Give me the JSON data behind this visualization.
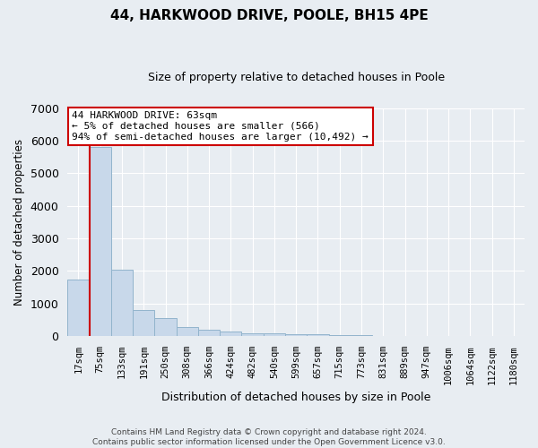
{
  "title": "44, HARKWOOD DRIVE, POOLE, BH15 4PE",
  "subtitle": "Size of property relative to detached houses in Poole",
  "xlabel": "Distribution of detached houses by size in Poole",
  "ylabel": "Number of detached properties",
  "bar_color": "#c8d8ea",
  "bar_edge_color": "#92b4cc",
  "categories": [
    "17sqm",
    "75sqm",
    "133sqm",
    "191sqm",
    "250sqm",
    "308sqm",
    "366sqm",
    "424sqm",
    "482sqm",
    "540sqm",
    "599sqm",
    "657sqm",
    "715sqm",
    "773sqm",
    "831sqm",
    "889sqm",
    "947sqm",
    "1006sqm",
    "1064sqm",
    "1122sqm",
    "1180sqm"
  ],
  "values": [
    1750,
    5800,
    2050,
    800,
    550,
    280,
    200,
    150,
    100,
    80,
    60,
    50,
    35,
    20,
    15,
    10,
    8,
    5,
    4,
    3,
    2
  ],
  "ylim": [
    0,
    7000
  ],
  "yticks": [
    0,
    1000,
    2000,
    3000,
    4000,
    5000,
    6000,
    7000
  ],
  "annotation_text": "44 HARKWOOD DRIVE: 63sqm\n← 5% of detached houses are smaller (566)\n94% of semi-detached houses are larger (10,492) →",
  "annotation_box_color": "#ffffff",
  "annotation_box_edge_color": "#cc0000",
  "vline_color": "#cc0000",
  "footer_line1": "Contains HM Land Registry data © Crown copyright and database right 2024.",
  "footer_line2": "Contains public sector information licensed under the Open Government Licence v3.0.",
  "background_color": "#e8edf2",
  "plot_background": "#e8edf2",
  "grid_color": "#ffffff",
  "title_fontsize": 11,
  "subtitle_fontsize": 9,
  "ylabel_fontsize": 8.5,
  "xlabel_fontsize": 9,
  "tick_fontsize": 7.5,
  "footer_fontsize": 6.5,
  "ann_fontsize": 8
}
